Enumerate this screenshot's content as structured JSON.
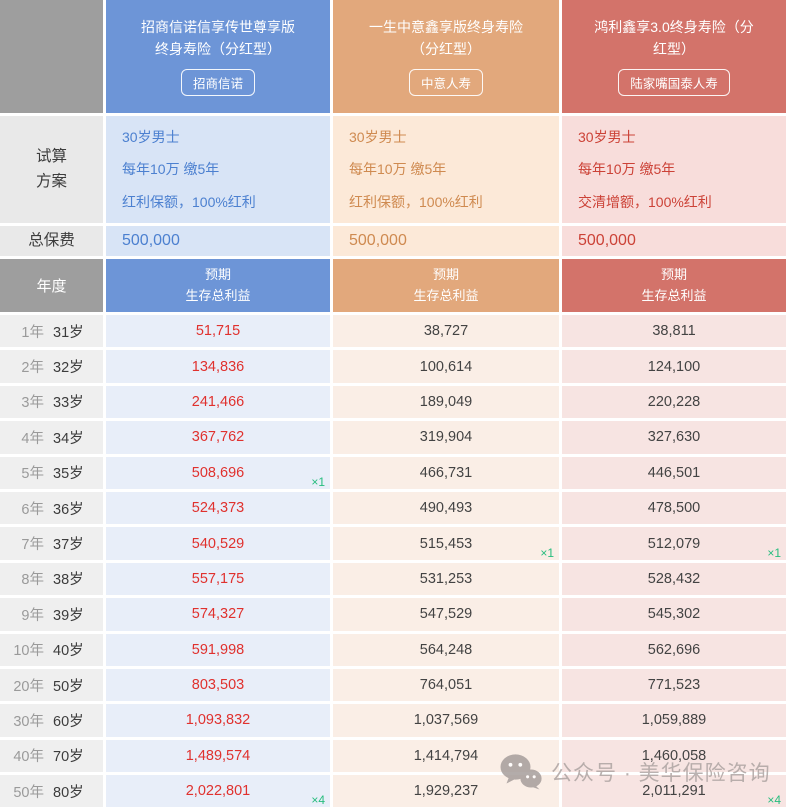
{
  "labels": {
    "plan": "试算\n方案",
    "premium": "总保费",
    "year": "年度"
  },
  "products": [
    {
      "name": "招商信诺信享传世尊享版\n终身寿险（分红型）",
      "company": "招商信诺",
      "plan": [
        "30岁男士",
        "每年10万 缴5年",
        "红利保额，100%红利"
      ],
      "premium": "500,000",
      "benefit_header": "预期\n生存总利益",
      "header_color": "#6d95d7"
    },
    {
      "name": "一生中意鑫享版终身寿险\n（分红型）",
      "company": "中意人寿",
      "plan": [
        "30岁男士",
        "每年10万 缴5年",
        "红利保额，100%红利"
      ],
      "premium": "500,000",
      "benefit_header": "预期\n生存总利益",
      "header_color": "#e2a87c"
    },
    {
      "name": "鸿利鑫享3.0终身寿险（分\n红型）",
      "company": "陆家嘴国泰人寿",
      "plan": [
        "30岁男士",
        "每年10万 缴5年",
        "交清增额，100%红利"
      ],
      "premium": "500,000",
      "benefit_header": "预期\n生存总利益",
      "header_color": "#d3736a"
    }
  ],
  "rows": [
    {
      "year": "1年",
      "age": "31岁",
      "values": [
        "51,715",
        "38,727",
        "38,811"
      ],
      "markers": [
        "",
        "",
        ""
      ]
    },
    {
      "year": "2年",
      "age": "32岁",
      "values": [
        "134,836",
        "100,614",
        "124,100"
      ],
      "markers": [
        "",
        "",
        ""
      ]
    },
    {
      "year": "3年",
      "age": "33岁",
      "values": [
        "241,466",
        "189,049",
        "220,228"
      ],
      "markers": [
        "",
        "",
        ""
      ]
    },
    {
      "year": "4年",
      "age": "34岁",
      "values": [
        "367,762",
        "319,904",
        "327,630"
      ],
      "markers": [
        "",
        "",
        ""
      ]
    },
    {
      "year": "5年",
      "age": "35岁",
      "values": [
        "508,696",
        "466,731",
        "446,501"
      ],
      "markers": [
        "×1",
        "",
        ""
      ]
    },
    {
      "year": "6年",
      "age": "36岁",
      "values": [
        "524,373",
        "490,493",
        "478,500"
      ],
      "markers": [
        "",
        "",
        ""
      ]
    },
    {
      "year": "7年",
      "age": "37岁",
      "values": [
        "540,529",
        "515,453",
        "512,079"
      ],
      "markers": [
        "",
        "×1",
        "×1"
      ]
    },
    {
      "year": "8年",
      "age": "38岁",
      "values": [
        "557,175",
        "531,253",
        "528,432"
      ],
      "markers": [
        "",
        "",
        ""
      ]
    },
    {
      "year": "9年",
      "age": "39岁",
      "values": [
        "574,327",
        "547,529",
        "545,302"
      ],
      "markers": [
        "",
        "",
        ""
      ]
    },
    {
      "year": "10年",
      "age": "40岁",
      "values": [
        "591,998",
        "564,248",
        "562,696"
      ],
      "markers": [
        "",
        "",
        ""
      ]
    },
    {
      "year": "20年",
      "age": "50岁",
      "values": [
        "803,503",
        "764,051",
        "771,523"
      ],
      "markers": [
        "",
        "",
        ""
      ]
    },
    {
      "year": "30年",
      "age": "60岁",
      "values": [
        "1,093,832",
        "1,037,569",
        "1,059,889"
      ],
      "markers": [
        "",
        "",
        ""
      ]
    },
    {
      "year": "40年",
      "age": "70岁",
      "values": [
        "1,489,574",
        "1,414,794",
        "1,460,058"
      ],
      "markers": [
        "",
        "",
        ""
      ]
    },
    {
      "year": "50年",
      "age": "80岁",
      "values": [
        "2,022,801",
        "1,929,237",
        "2,011,291"
      ],
      "markers": [
        "×4",
        "",
        "×4"
      ]
    }
  ],
  "watermark": {
    "icon": "wechat-icon",
    "text": "公众号 · 美华保险咨询"
  },
  "colors": {
    "product1_header": "#6d95d7",
    "product2_header": "#e2a87c",
    "product3_header": "#d3736a",
    "column1_value_text": "#e0312e",
    "marker_green": "#27bd7e",
    "gray_header": "#9e9e9e"
  },
  "chart_data": {
    "type": "table",
    "row_labels_year": [
      "1年",
      "2年",
      "3年",
      "4年",
      "5年",
      "6年",
      "7年",
      "8年",
      "9年",
      "10年",
      "20年",
      "30年",
      "40年",
      "50年"
    ],
    "row_labels_age": [
      "31岁",
      "32岁",
      "33岁",
      "34岁",
      "35岁",
      "36岁",
      "37岁",
      "38岁",
      "39岁",
      "40岁",
      "50岁",
      "60岁",
      "70岁",
      "80岁"
    ],
    "value_column_header": "预期生存总利益",
    "series": [
      {
        "name": "招商信诺信享传世尊享版终身寿险（分红型）",
        "company": "招商信诺",
        "plan": "30岁男士 每年10万 缴5年 红利保额，100%红利",
        "total_premium": 500000,
        "values": [
          51715,
          134836,
          241466,
          367762,
          508696,
          524373,
          540529,
          557175,
          574327,
          591998,
          803503,
          1093832,
          1489574,
          2022801
        ]
      },
      {
        "name": "一生中意鑫享版终身寿险（分红型）",
        "company": "中意人寿",
        "plan": "30岁男士 每年10万 缴5年 红利保额，100%红利",
        "total_premium": 500000,
        "values": [
          38727,
          100614,
          189049,
          319904,
          466731,
          490493,
          515453,
          531253,
          547529,
          564248,
          764051,
          1037569,
          1414794,
          1929237
        ]
      },
      {
        "name": "鸿利鑫享3.0终身寿险（分红型）",
        "company": "陆家嘴国泰人寿",
        "plan": "30岁男士 每年10万 缴5年 交清增额，100%红利",
        "total_premium": 500000,
        "values": [
          38811,
          124100,
          220228,
          327630,
          446501,
          478500,
          512079,
          528432,
          545302,
          562696,
          771523,
          1059889,
          1460058,
          2011291
        ]
      }
    ]
  }
}
